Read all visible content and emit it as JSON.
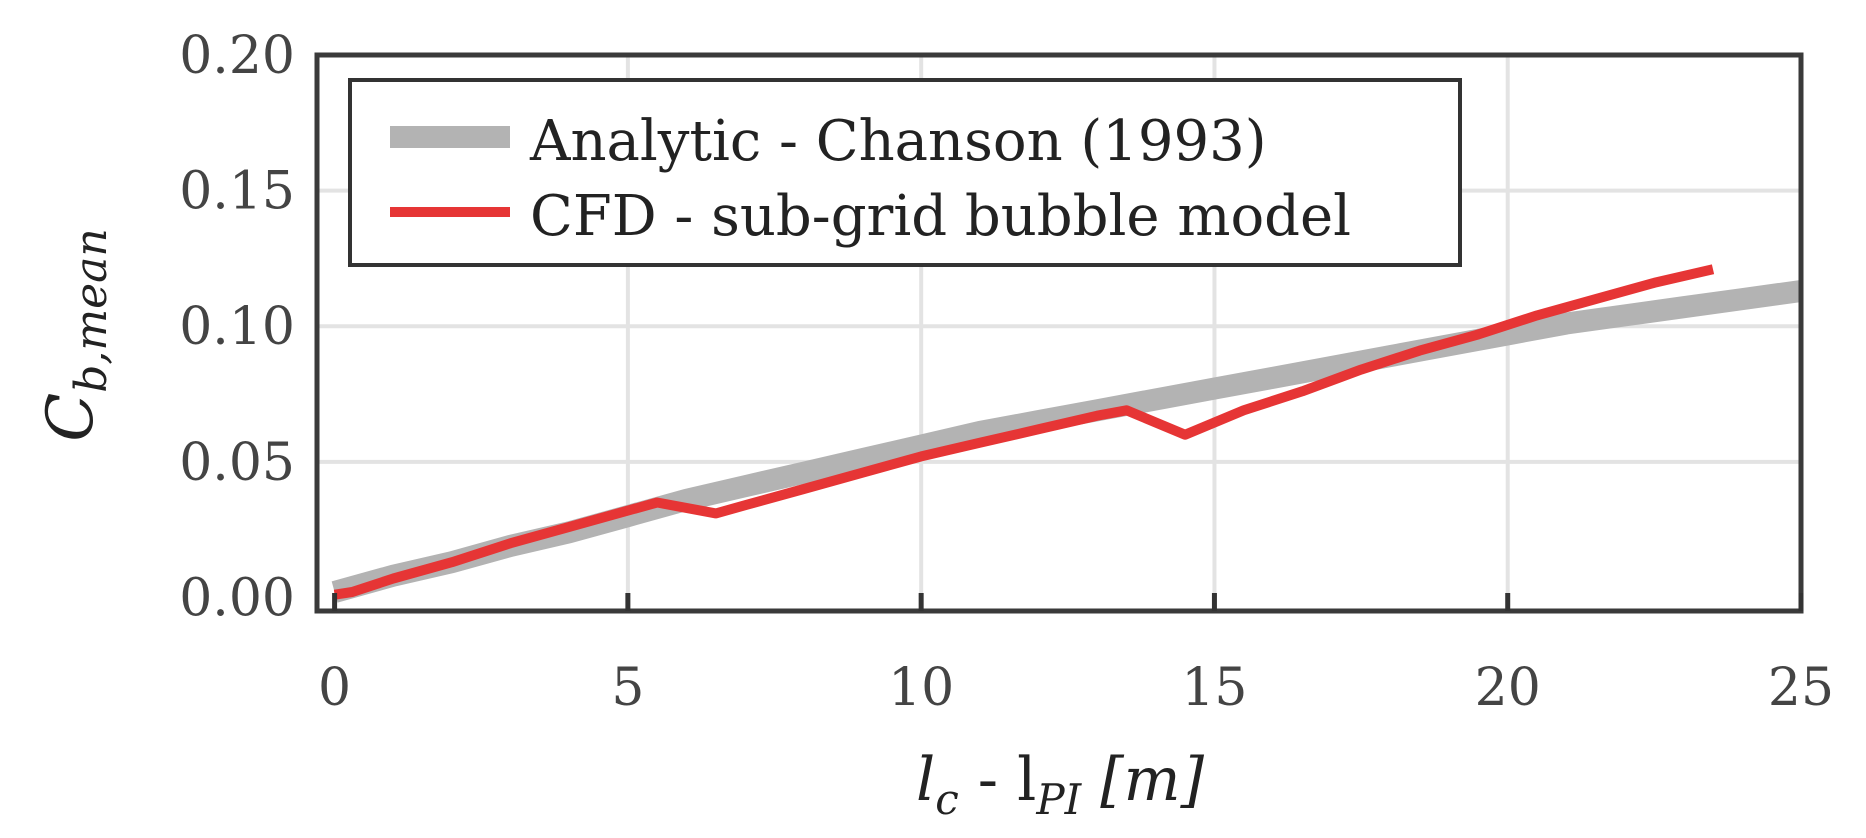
{
  "chart_data": {
    "type": "line",
    "x_label": {
      "main": "l",
      "sub1": "c",
      "mid": " - l",
      "sub2": "PI",
      "unit": "  [m]"
    },
    "y_label": {
      "main": "C",
      "sub": "b,mean"
    },
    "xlim": [
      -0.3,
      25
    ],
    "ylim": [
      -0.005,
      0.2
    ],
    "x_ticks": [
      0,
      5,
      10,
      15,
      20,
      25
    ],
    "x_tick_labels": [
      "0",
      "5",
      "10",
      "15",
      "20",
      "25"
    ],
    "y_ticks": [
      0,
      0.05,
      0.1,
      0.15,
      0.2
    ],
    "y_tick_labels": [
      "0.00",
      "0.05",
      "0.10",
      "0.15",
      "0.20"
    ],
    "grid": true,
    "legend_position": "top-left",
    "series": [
      {
        "name": "Analytic - Chanson (1993)",
        "color": "#b3b3b3",
        "x": [
          0,
          1,
          2,
          3,
          4,
          5,
          6,
          7,
          8,
          9,
          10,
          11,
          12,
          13,
          14,
          15,
          16,
          17,
          18,
          19,
          20,
          21,
          22,
          23,
          24,
          25
        ],
        "y": [
          0.002,
          0.008,
          0.013,
          0.019,
          0.024,
          0.03,
          0.036,
          0.041,
          0.046,
          0.051,
          0.056,
          0.061,
          0.065,
          0.069,
          0.073,
          0.077,
          0.081,
          0.085,
          0.089,
          0.093,
          0.097,
          0.101,
          0.104,
          0.107,
          0.11,
          0.113
        ]
      },
      {
        "name": "CFD - sub-grid bubble model",
        "color": "#e63535",
        "x": [
          0,
          0.3,
          1,
          2,
          3,
          4,
          5,
          5.5,
          6.5,
          7,
          8,
          9,
          10,
          11,
          12,
          13,
          13.5,
          14.5,
          15.5,
          16.5,
          17.5,
          18.5,
          19.5,
          20.5,
          21.5,
          22.5,
          23.5
        ],
        "y": [
          0.001,
          0.002,
          0.007,
          0.013,
          0.02,
          0.026,
          0.032,
          0.035,
          0.031,
          0.034,
          0.04,
          0.046,
          0.052,
          0.057,
          0.062,
          0.067,
          0.069,
          0.06,
          0.069,
          0.076,
          0.084,
          0.091,
          0.097,
          0.104,
          0.11,
          0.116,
          0.121
        ]
      }
    ]
  }
}
